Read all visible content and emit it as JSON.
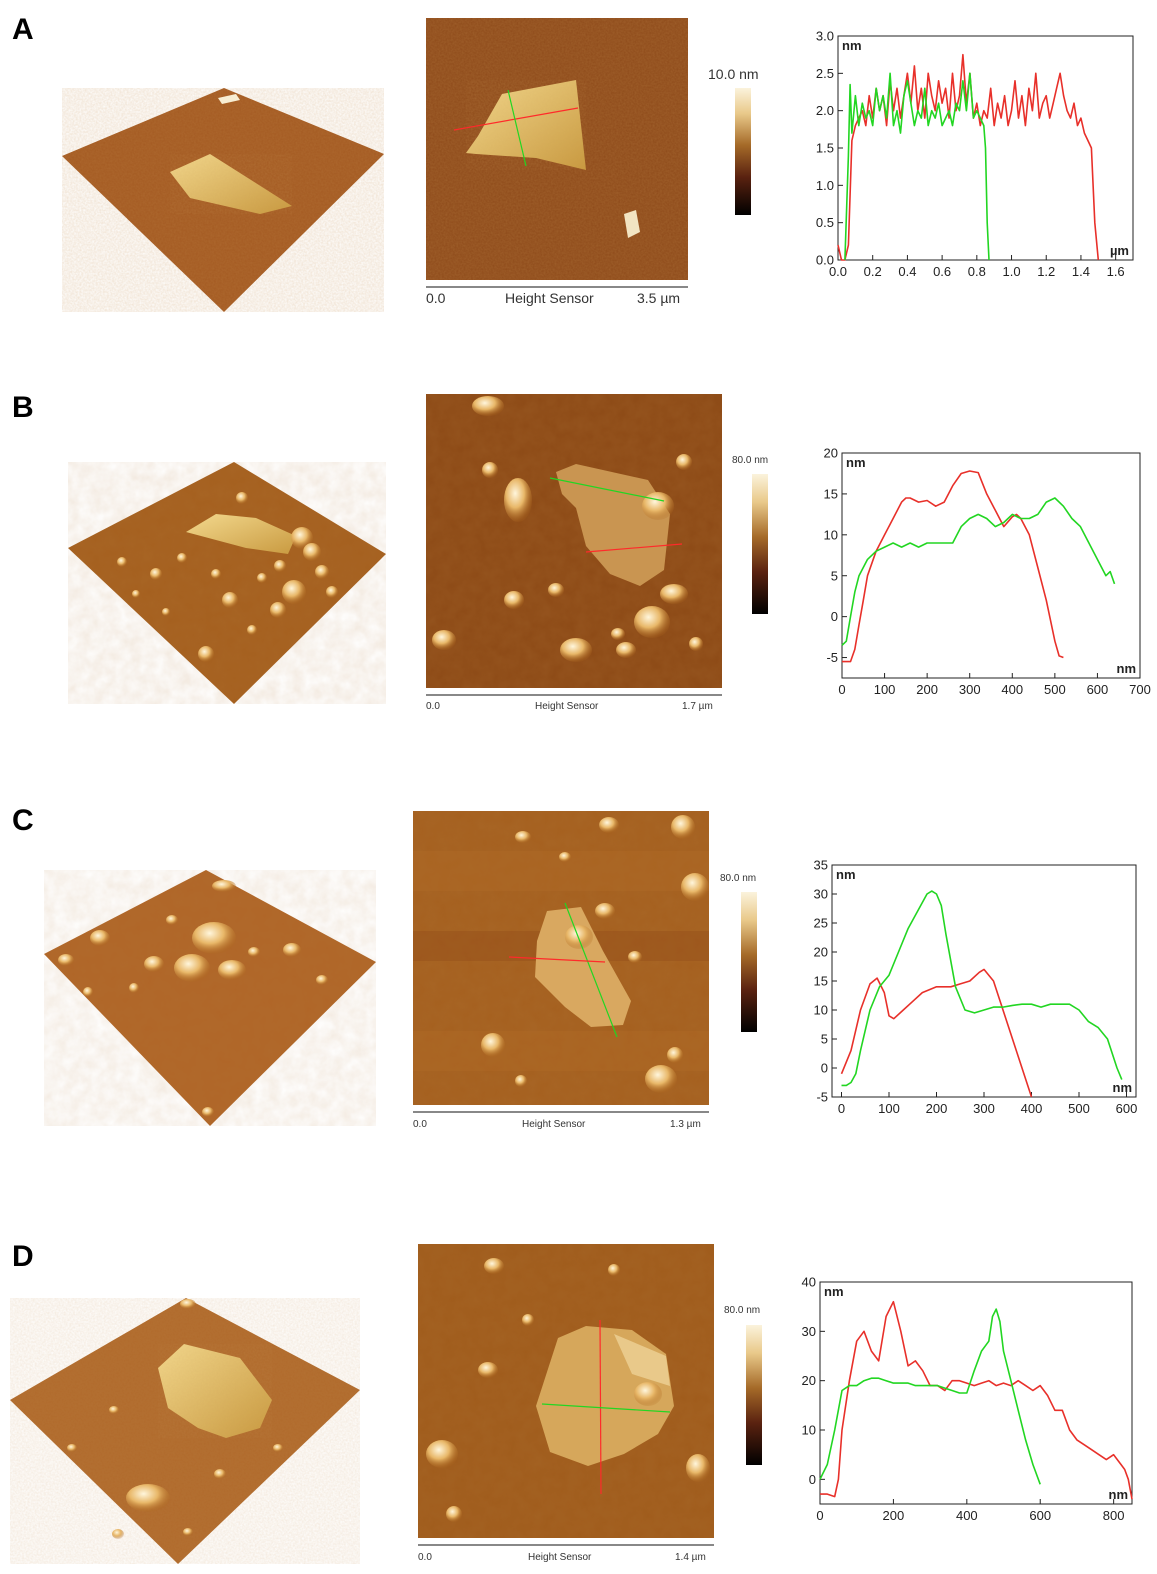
{
  "panels": [
    {
      "label": "A",
      "scale_start": "0.0",
      "scale_title": "Height Sensor",
      "scale_end": "3.5 µm",
      "colorbar_max": "10.0 nm",
      "chart_data": {
        "type": "line",
        "ylim": [
          0,
          3.0
        ],
        "yticks": [
          0.0,
          0.5,
          1.0,
          1.5,
          2.0,
          2.5,
          3.0
        ],
        "ytick_labels": [
          "0.0",
          "0.5",
          "1.0",
          "1.5",
          "2.0",
          "2.5",
          "3.0"
        ],
        "xlim": [
          0,
          1.7
        ],
        "xticks": [
          0.0,
          0.2,
          0.4,
          0.6,
          0.8,
          1.0,
          1.2,
          1.4,
          1.6
        ],
        "xtick_labels": [
          "0.0",
          "0.2",
          "0.4",
          "0.6",
          "0.8",
          "1.0",
          "1.2",
          "1.4",
          "1.6"
        ],
        "y_unit": "nm",
        "x_unit": "µm",
        "series": [
          {
            "color": "#e8302a",
            "x": [
              0.0,
              0.02,
              0.04,
              0.06,
              0.08,
              0.1,
              0.12,
              0.14,
              0.16,
              0.18,
              0.2,
              0.22,
              0.24,
              0.26,
              0.28,
              0.3,
              0.32,
              0.34,
              0.36,
              0.38,
              0.4,
              0.42,
              0.44,
              0.46,
              0.48,
              0.5,
              0.52,
              0.54,
              0.56,
              0.58,
              0.6,
              0.62,
              0.64,
              0.66,
              0.68,
              0.7,
              0.72,
              0.74,
              0.76,
              0.78,
              0.8,
              0.82,
              0.84,
              0.86,
              0.88,
              0.9,
              0.92,
              0.94,
              0.96,
              0.98,
              1.0,
              1.02,
              1.04,
              1.06,
              1.08,
              1.1,
              1.12,
              1.14,
              1.16,
              1.18,
              1.2,
              1.22,
              1.24,
              1.26,
              1.28,
              1.3,
              1.32,
              1.34,
              1.36,
              1.38,
              1.4,
              1.42,
              1.44,
              1.46,
              1.48,
              1.5
            ],
            "y": [
              0.2,
              0.0,
              0.0,
              0.2,
              1.6,
              1.8,
              1.9,
              2.0,
              1.8,
              2.2,
              1.9,
              2.3,
              2.0,
              2.2,
              1.8,
              2.4,
              2.0,
              2.3,
              1.9,
              2.2,
              2.5,
              2.1,
              2.6,
              2.0,
              2.3,
              1.9,
              2.5,
              2.2,
              2.0,
              2.4,
              2.1,
              2.3,
              1.9,
              2.5,
              2.0,
              2.2,
              2.75,
              2.1,
              2.5,
              1.9,
              2.1,
              1.8,
              2.0,
              1.9,
              2.3,
              1.8,
              2.1,
              1.9,
              2.2,
              1.8,
              2.0,
              2.4,
              1.9,
              2.2,
              1.8,
              2.3,
              2.0,
              2.5,
              1.9,
              2.1,
              2.2,
              1.9,
              2.1,
              2.3,
              2.5,
              2.2,
              2.0,
              1.9,
              2.1,
              1.8,
              1.9,
              1.7,
              1.6,
              1.5,
              0.5,
              0.0
            ]
          },
          {
            "color": "#22d622",
            "x": [
              0.04,
              0.06,
              0.07,
              0.08,
              0.1,
              0.12,
              0.14,
              0.16,
              0.18,
              0.2,
              0.22,
              0.24,
              0.26,
              0.28,
              0.3,
              0.32,
              0.34,
              0.36,
              0.38,
              0.4,
              0.42,
              0.44,
              0.46,
              0.48,
              0.5,
              0.52,
              0.54,
              0.56,
              0.58,
              0.6,
              0.62,
              0.64,
              0.66,
              0.68,
              0.7,
              0.72,
              0.74,
              0.76,
              0.78,
              0.8,
              0.82,
              0.84,
              0.85,
              0.86,
              0.87
            ],
            "y": [
              0.0,
              1.4,
              2.35,
              1.7,
              2.2,
              1.8,
              2.1,
              1.9,
              2.0,
              1.8,
              2.3,
              2.0,
              2.2,
              1.9,
              2.5,
              1.8,
              2.0,
              1.7,
              2.2,
              2.4,
              2.1,
              1.8,
              2.0,
              1.9,
              2.3,
              1.8,
              2.0,
              1.9,
              2.1,
              1.8,
              1.9,
              2.0,
              1.8,
              2.1,
              2.0,
              2.4,
              2.0,
              2.5,
              1.9,
              2.0,
              1.9,
              1.8,
              1.5,
              0.5,
              0.0
            ]
          }
        ]
      }
    },
    {
      "label": "B",
      "scale_start": "0.0",
      "scale_title": "Height Sensor",
      "scale_end": "1.7 µm",
      "colorbar_max": "80.0 nm",
      "chart_data": {
        "type": "line",
        "ylim": [
          -7.5,
          20
        ],
        "yticks": [
          -5,
          0,
          5,
          10,
          15,
          20
        ],
        "ytick_labels": [
          "-5",
          "0",
          "5",
          "10",
          "15",
          "20"
        ],
        "xlim": [
          0,
          700
        ],
        "xticks": [
          0,
          100,
          200,
          300,
          400,
          500,
          600,
          700
        ],
        "xtick_labels": [
          "0",
          "100",
          "200",
          "300",
          "400",
          "500",
          "600",
          "700"
        ],
        "y_unit": "nm",
        "x_unit": "nm",
        "series": [
          {
            "color": "#e8302a",
            "x": [
              0,
              10,
              20,
              30,
              40,
              50,
              60,
              80,
              100,
              120,
              140,
              150,
              160,
              180,
              200,
              220,
              240,
              260,
              280,
              300,
              320,
              340,
              360,
              380,
              400,
              410,
              420,
              440,
              460,
              480,
              500,
              510,
              520
            ],
            "y": [
              -5.5,
              -5.5,
              -5.5,
              -4,
              -1,
              2,
              5,
              8,
              10,
              12,
              14,
              14.5,
              14.5,
              14,
              14.2,
              13.5,
              14,
              16,
              17.5,
              17.8,
              17.6,
              15,
              13,
              11,
              12.2,
              12.5,
              12,
              10,
              6,
              2,
              -3,
              -4.8,
              -5
            ]
          },
          {
            "color": "#22d622",
            "x": [
              0,
              10,
              20,
              30,
              40,
              60,
              80,
              100,
              120,
              140,
              160,
              180,
              200,
              220,
              240,
              260,
              280,
              300,
              320,
              340,
              360,
              380,
              400,
              420,
              440,
              460,
              480,
              500,
              520,
              540,
              560,
              580,
              600,
              620,
              630,
              640
            ],
            "y": [
              -3.5,
              -3,
              0,
              3,
              5,
              7,
              8,
              8.5,
              9,
              8.5,
              9,
              8.5,
              9,
              9,
              9,
              9,
              11,
              12,
              12.5,
              12,
              11,
              11.5,
              12.5,
              12,
              12,
              12.5,
              14,
              14.5,
              13.5,
              12,
              11,
              9,
              7,
              5,
              5.5,
              4
            ]
          }
        ]
      }
    },
    {
      "label": "C",
      "scale_start": "0.0",
      "scale_title": "Height Sensor",
      "scale_end": "1.3 µm",
      "colorbar_max": "80.0 nm",
      "chart_data": {
        "type": "line",
        "ylim": [
          -5,
          35
        ],
        "yticks": [
          -5,
          0,
          5,
          10,
          15,
          20,
          25,
          30,
          35
        ],
        "ytick_labels": [
          "-5",
          "0",
          "5",
          "10",
          "15",
          "20",
          "25",
          "30",
          "35"
        ],
        "xlim": [
          -20,
          620
        ],
        "xticks": [
          0,
          100,
          200,
          300,
          400,
          500,
          600
        ],
        "xtick_labels": [
          "0",
          "100",
          "200",
          "300",
          "400",
          "500",
          "600"
        ],
        "y_unit": "nm",
        "x_unit": "nm",
        "series": [
          {
            "color": "#e8302a",
            "x": [
              0,
              20,
              40,
              60,
              75,
              90,
              100,
              110,
              130,
              150,
              170,
              200,
              230,
              250,
              270,
              290,
              300,
              320,
              340,
              360,
              380,
              400
            ],
            "y": [
              -1,
              3,
              10,
              14.5,
              15.5,
              13,
              9,
              8.5,
              10,
              11.5,
              13,
              14,
              14,
              14.5,
              15,
              16.5,
              17,
              15,
              10,
              5,
              0,
              -5
            ]
          },
          {
            "color": "#22d622",
            "x": [
              0,
              10,
              20,
              30,
              40,
              60,
              80,
              100,
              120,
              140,
              160,
              180,
              190,
              200,
              210,
              220,
              240,
              260,
              280,
              300,
              320,
              340,
              360,
              380,
              400,
              420,
              440,
              460,
              480,
              500,
              520,
              540,
              560,
              580,
              590
            ],
            "y": [
              -3,
              -3,
              -2.5,
              -1,
              3,
              10,
              14,
              16,
              20,
              24,
              27,
              30,
              30.5,
              30,
              28,
              23,
              14,
              10,
              9.5,
              10,
              10.5,
              10.5,
              10.8,
              11,
              11,
              10.5,
              11,
              11,
              11,
              10,
              8,
              7,
              5,
              0,
              -2
            ]
          }
        ]
      }
    },
    {
      "label": "D",
      "scale_start": "0.0",
      "scale_title": "Height Sensor",
      "scale_end": "1.4 µm",
      "colorbar_max": "80.0 nm",
      "chart_data": {
        "type": "line",
        "ylim": [
          -5,
          40
        ],
        "yticks": [
          0,
          10,
          20,
          30,
          40
        ],
        "ytick_labels": [
          "0",
          "10",
          "20",
          "30",
          "40"
        ],
        "xlim": [
          0,
          850
        ],
        "xticks": [
          0,
          200,
          400,
          600,
          800
        ],
        "xtick_labels": [
          "0",
          "200",
          "400",
          "600",
          "800"
        ],
        "y_unit": "nm",
        "x_unit": "nm",
        "series": [
          {
            "color": "#e8302a",
            "x": [
              0,
              20,
              40,
              50,
              60,
              80,
              100,
              120,
              140,
              160,
              180,
              200,
              220,
              240,
              260,
              280,
              300,
              320,
              340,
              360,
              380,
              400,
              420,
              440,
              460,
              480,
              500,
              520,
              540,
              560,
              580,
              600,
              620,
              640,
              660,
              680,
              700,
              720,
              740,
              760,
              780,
              800,
              810,
              820,
              830,
              840,
              850
            ],
            "y": [
              -3,
              -3,
              -3.5,
              0,
              10,
              20,
              28,
              30,
              26,
              24,
              33,
              36,
              30,
              23,
              24,
              22,
              19,
              19,
              18,
              20,
              20,
              19.5,
              19,
              19.5,
              20,
              19,
              19.5,
              19,
              20,
              19,
              18,
              19,
              17,
              14,
              14,
              10,
              8,
              7,
              6,
              5,
              4,
              5,
              4,
              3,
              2,
              0,
              -4
            ]
          },
          {
            "color": "#22d622",
            "x": [
              0,
              20,
              40,
              60,
              80,
              100,
              120,
              140,
              160,
              180,
              200,
              220,
              240,
              260,
              280,
              300,
              320,
              340,
              360,
              380,
              400,
              420,
              440,
              460,
              470,
              480,
              490,
              500,
              520,
              540,
              560,
              580,
              600
            ],
            "y": [
              0,
              3,
              10,
              18,
              19,
              19,
              20,
              20.5,
              20.5,
              20,
              19.5,
              19.5,
              19.5,
              19,
              19,
              19,
              19,
              18.5,
              18,
              17.5,
              17.5,
              22,
              26,
              28,
              33,
              34.5,
              32,
              26,
              20,
              14,
              8,
              3,
              -1
            ]
          }
        ]
      }
    }
  ]
}
